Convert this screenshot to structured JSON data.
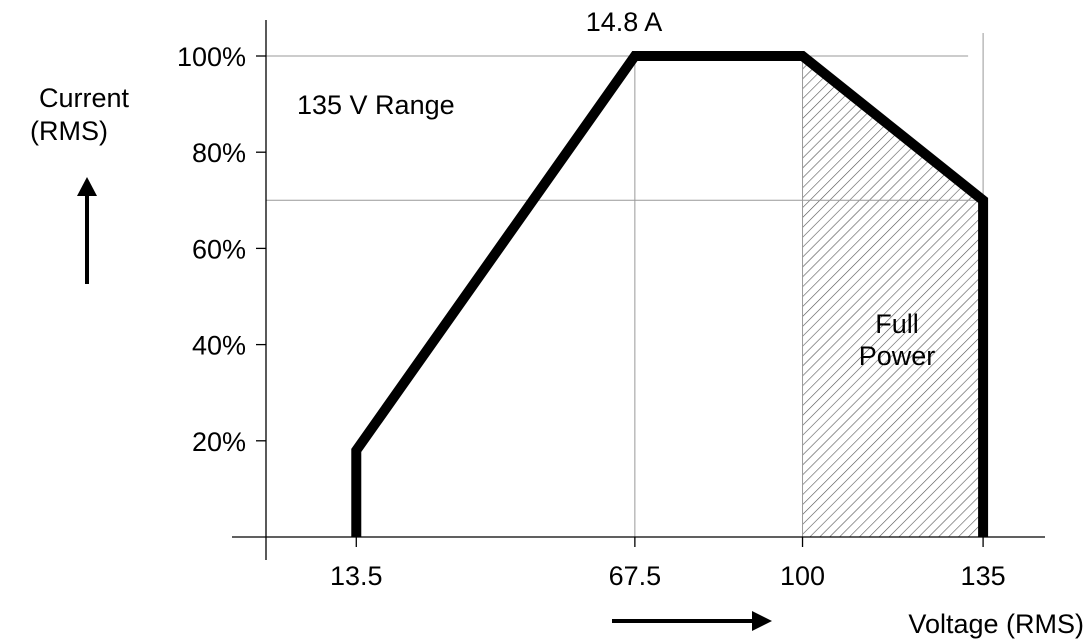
{
  "chart_data": {
    "type": "line",
    "title": "",
    "annotation_top": "14.8 A",
    "range_label": "135 V Range",
    "region_label": [
      "Full",
      "Power"
    ],
    "xlabel": "Voltage (RMS)",
    "ylabel": [
      "Current",
      "(RMS)"
    ],
    "x_ticks": [
      13.5,
      67.5,
      100,
      135
    ],
    "x_tick_labels": [
      "13.5",
      "67.5",
      "100",
      "135"
    ],
    "y_ticks": [
      20,
      40,
      60,
      80,
      100
    ],
    "y_tick_labels": [
      "20%",
      "40%",
      "60%",
      "80%",
      "100%"
    ],
    "xlim": [
      -4,
      147
    ],
    "ylim": [
      0,
      100
    ],
    "grid": false,
    "reference_lines": {
      "horizontal": [
        100,
        70
      ],
      "vertical": [
        67.5,
        100,
        135
      ]
    },
    "series": [
      {
        "x": [
          13.5,
          13.5,
          67.5,
          100,
          135,
          135
        ],
        "y": [
          0,
          18,
          100,
          100,
          70,
          0
        ]
      }
    ],
    "shaded_region": {
      "x": [
        100,
        135
      ]
    },
    "colors": {
      "line": "#000000",
      "guide": "#999999",
      "hatch": "#555555"
    }
  }
}
